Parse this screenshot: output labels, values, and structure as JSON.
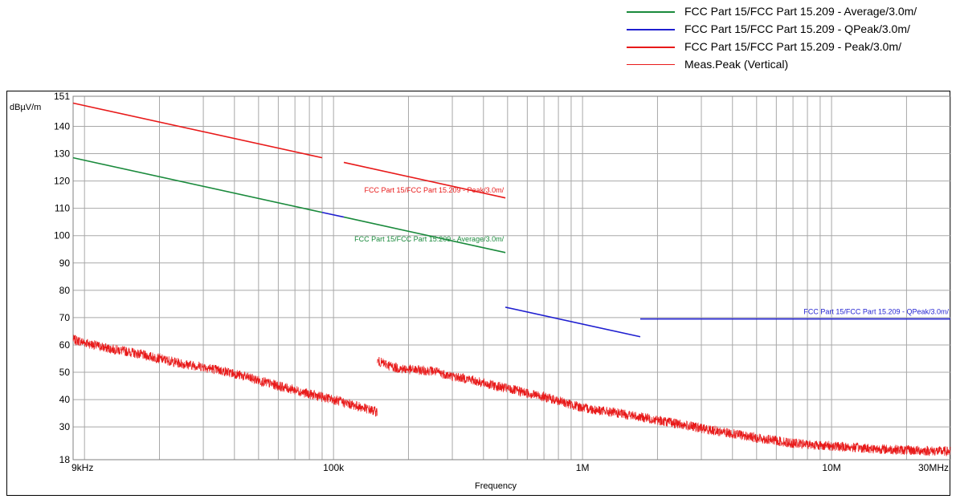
{
  "chart_data": {
    "type": "line",
    "title": "",
    "xlabel": "Frequency",
    "ylabel": "dBµV/m",
    "x_scale": "log",
    "xlim": [
      9000,
      30000000
    ],
    "ylim": [
      18,
      151
    ],
    "grid": true,
    "legend_position": "top-right",
    "x_tick_labels": [
      {
        "value": 9000,
        "label": "9kHz"
      },
      {
        "value": 100000,
        "label": "100k"
      },
      {
        "value": 1000000,
        "label": "1M"
      },
      {
        "value": 10000000,
        "label": "10M"
      },
      {
        "value": 30000000,
        "label": "30MHz"
      }
    ],
    "x_minor_grid": [
      9000,
      10000,
      20000,
      30000,
      40000,
      50000,
      60000,
      70000,
      80000,
      90000,
      100000,
      200000,
      300000,
      400000,
      500000,
      600000,
      700000,
      800000,
      900000,
      1000000,
      2000000,
      3000000,
      4000000,
      5000000,
      6000000,
      7000000,
      8000000,
      9000000,
      10000000,
      20000000,
      30000000
    ],
    "y_ticks": [
      {
        "value": 18,
        "label": "18"
      },
      {
        "value": 30,
        "label": "30"
      },
      {
        "value": 40,
        "label": "40"
      },
      {
        "value": 50,
        "label": "50"
      },
      {
        "value": 60,
        "label": "60"
      },
      {
        "value": 70,
        "label": "70"
      },
      {
        "value": 80,
        "label": "80"
      },
      {
        "value": 90,
        "label": "90"
      },
      {
        "value": 100,
        "label": "100"
      },
      {
        "value": 110,
        "label": "110"
      },
      {
        "value": 120,
        "label": "120"
      },
      {
        "value": 130,
        "label": "130"
      },
      {
        "value": 140,
        "label": "140"
      },
      {
        "value": 151,
        "label": "151"
      }
    ],
    "series": [
      {
        "name": "FCC Part 15/FCC Part 15.209  - Average/3.0m/",
        "color": "#1a8a3c",
        "segments": [
          [
            [
              9000,
              128.5
            ],
            [
              90000,
              108.5
            ]
          ],
          [
            [
              110000,
              106.8
            ],
            [
              490000,
              93.8
            ]
          ]
        ]
      },
      {
        "name": "FCC Part 15/FCC Part 15.209  - QPeak/3.0m/",
        "color": "#1f1fd0",
        "segments": [
          [
            [
              90000,
              108.5
            ],
            [
              110000,
              106.8
            ]
          ],
          [
            [
              490000,
              73.8
            ],
            [
              1705000,
              63.0
            ]
          ],
          [
            [
              1705000,
              69.5
            ],
            [
              30000000,
              69.5
            ]
          ]
        ]
      },
      {
        "name": "FCC Part 15/FCC Part 15.209  - Peak/3.0m/",
        "color": "#e81a1a",
        "segments": [
          [
            [
              9000,
              148.5
            ],
            [
              90000,
              128.5
            ]
          ],
          [
            [
              110000,
              126.8
            ],
            [
              490000,
              113.8
            ]
          ]
        ]
      },
      {
        "name": "Meas.Peak (Vertical)",
        "color": "#e81a1a",
        "thin": true,
        "segments": [
          [
            [
              9000,
              62
            ],
            [
              12000,
              59
            ],
            [
              15000,
              57.5
            ],
            [
              20000,
              55
            ],
            [
              25000,
              53
            ],
            [
              30000,
              52
            ],
            [
              40000,
              49.5
            ],
            [
              50000,
              47
            ],
            [
              60000,
              45
            ],
            [
              70000,
              43.5
            ],
            [
              80000,
              42
            ],
            [
              100000,
              40
            ],
            [
              120000,
              38
            ],
            [
              150000,
              35.5
            ]
          ],
          [
            [
              150000,
              54
            ],
            [
              180000,
              51.5
            ],
            [
              200000,
              51
            ],
            [
              250000,
              50.5
            ],
            [
              300000,
              48.5
            ],
            [
              350000,
              47.5
            ],
            [
              400000,
              46
            ],
            [
              500000,
              44
            ],
            [
              700000,
              41
            ],
            [
              1000000,
              37
            ],
            [
              1500000,
              34.5
            ],
            [
              2000000,
              32.5
            ],
            [
              3000000,
              29.5
            ],
            [
              5000000,
              26
            ],
            [
              7000000,
              24
            ],
            [
              10000000,
              23
            ],
            [
              15000000,
              22
            ],
            [
              20000000,
              21.5
            ],
            [
              30000000,
              21
            ]
          ]
        ]
      }
    ],
    "annotations": [
      {
        "text": "FCC Part 15/FCC Part 15.209  - Peak/3.0m/",
        "series": 2,
        "x": 490000,
        "y": 115.5
      },
      {
        "text": "FCC Part 15/FCC Part 15.209  - Average/3.0m/",
        "series": 0,
        "x": 490000,
        "y": 97.5
      },
      {
        "text": "FCC Part 15/FCC Part 15.209  - QPeak/3.0m/",
        "series": 1,
        "x": 30000000,
        "y": 71.0
      }
    ]
  }
}
